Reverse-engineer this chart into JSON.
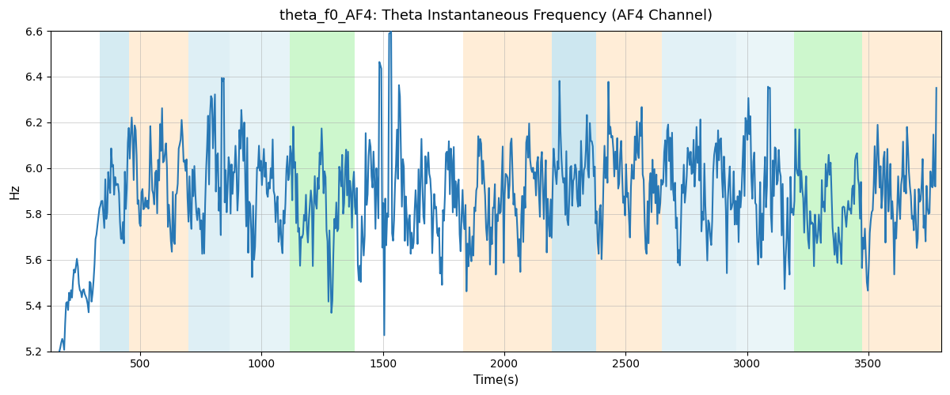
{
  "title": "theta_f0_AF4: Theta Instantaneous Frequency (AF4 Channel)",
  "xlabel": "Time(s)",
  "ylabel": "Hz",
  "ylim": [
    5.2,
    6.6
  ],
  "xlim": [
    130,
    3800
  ],
  "figsize": [
    12.0,
    5.0
  ],
  "dpi": 100,
  "line_color": "#2878b5",
  "line_width": 1.5,
  "bg_color": "white",
  "bands": [
    {
      "start": 335,
      "end": 455,
      "color": "#add8e6",
      "alpha": 0.5
    },
    {
      "start": 455,
      "end": 700,
      "color": "#ffd8a8",
      "alpha": 0.45
    },
    {
      "start": 700,
      "end": 870,
      "color": "#add8e6",
      "alpha": 0.4
    },
    {
      "start": 870,
      "end": 1115,
      "color": "#add8e6",
      "alpha": 0.3
    },
    {
      "start": 1115,
      "end": 1385,
      "color": "#90ee90",
      "alpha": 0.45
    },
    {
      "start": 1830,
      "end": 2195,
      "color": "#ffd8a8",
      "alpha": 0.45
    },
    {
      "start": 2195,
      "end": 2380,
      "color": "#add8e6",
      "alpha": 0.6
    },
    {
      "start": 2380,
      "end": 2650,
      "color": "#ffd8a8",
      "alpha": 0.45
    },
    {
      "start": 2650,
      "end": 2955,
      "color": "#add8e6",
      "alpha": 0.35
    },
    {
      "start": 2955,
      "end": 3195,
      "color": "#add8e6",
      "alpha": 0.25
    },
    {
      "start": 3195,
      "end": 3475,
      "color": "#90ee90",
      "alpha": 0.45
    },
    {
      "start": 3475,
      "end": 3810,
      "color": "#ffd8a8",
      "alpha": 0.45
    }
  ],
  "seed": 7
}
